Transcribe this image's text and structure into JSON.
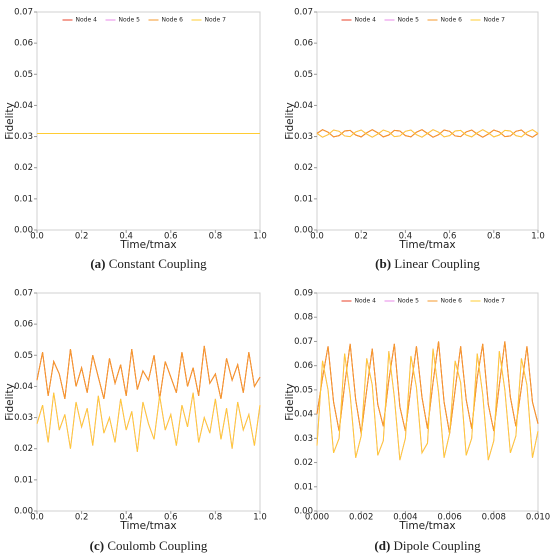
{
  "chart_data": [
    {
      "type": "line",
      "caption_label": "(a)",
      "caption": "Constant Coupling",
      "xlabel": "Time/tmax",
      "ylabel": "Fidelity",
      "legend": true,
      "legend_loc": "upper center",
      "xlim": [
        0,
        1
      ],
      "ylim": [
        0,
        0.07
      ],
      "xticks": [
        {
          "value": 0,
          "label": "0.0"
        },
        {
          "value": 0.2,
          "label": "0.2"
        },
        {
          "value": 0.4,
          "label": "0.4"
        },
        {
          "value": 0.6,
          "label": "0.6"
        },
        {
          "value": 0.8,
          "label": "0.8"
        },
        {
          "value": 1,
          "label": "1.0"
        }
      ],
      "yticks": [
        {
          "value": 0,
          "label": "0.00"
        },
        {
          "value": 0.01,
          "label": "0.01"
        },
        {
          "value": 0.02,
          "label": "0.02"
        },
        {
          "value": 0.03,
          "label": "0.03"
        },
        {
          "value": 0.04,
          "label": "0.04"
        },
        {
          "value": 0.05,
          "label": "0.05"
        },
        {
          "value": 0.06,
          "label": "0.06"
        },
        {
          "value": 0.07,
          "label": "0.07"
        }
      ],
      "x": [
        0,
        1
      ],
      "series": [
        {
          "name": "Node 4",
          "color": "#e8412a",
          "values": [
            0.031,
            0.031
          ]
        },
        {
          "name": "Node 5",
          "color": "#e98be9",
          "values": [
            0.031,
            0.031
          ]
        },
        {
          "name": "Node 6",
          "color": "#f59a2c",
          "values": [
            0.031,
            0.031
          ]
        },
        {
          "name": "Node 7",
          "color": "#ffcc33",
          "values": [
            0.031,
            0.031
          ]
        }
      ]
    },
    {
      "type": "line",
      "caption_label": "(b)",
      "caption": "Linear Coupling",
      "xlabel": "Time/tmax",
      "ylabel": "Fidelity",
      "legend": true,
      "legend_loc": "upper center",
      "xlim": [
        0,
        1
      ],
      "ylim": [
        0,
        0.07
      ],
      "xticks": [
        {
          "value": 0,
          "label": "0.0"
        },
        {
          "value": 0.2,
          "label": "0.2"
        },
        {
          "value": 0.4,
          "label": "0.4"
        },
        {
          "value": 0.6,
          "label": "0.6"
        },
        {
          "value": 0.8,
          "label": "0.8"
        },
        {
          "value": 1,
          "label": "1.0"
        }
      ],
      "yticks": [
        {
          "value": 0,
          "label": "0.00"
        },
        {
          "value": 0.01,
          "label": "0.01"
        },
        {
          "value": 0.02,
          "label": "0.02"
        },
        {
          "value": 0.03,
          "label": "0.03"
        },
        {
          "value": 0.04,
          "label": "0.04"
        },
        {
          "value": 0.05,
          "label": "0.05"
        },
        {
          "value": 0.06,
          "label": "0.06"
        },
        {
          "value": 0.07,
          "label": "0.07"
        }
      ],
      "x": [
        0,
        0.025,
        0.05,
        0.075,
        0.1,
        0.125,
        0.15,
        0.175,
        0.2,
        0.225,
        0.25,
        0.275,
        0.3,
        0.325,
        0.35,
        0.375,
        0.4,
        0.425,
        0.45,
        0.475,
        0.5,
        0.525,
        0.55,
        0.575,
        0.6,
        0.625,
        0.65,
        0.675,
        0.7,
        0.725,
        0.75,
        0.775,
        0.8,
        0.825,
        0.85,
        0.875,
        0.9,
        0.925,
        0.95,
        0.975,
        1
      ],
      "series": [
        {
          "name": "Node 4",
          "color": "#e8412a",
          "values": [
            0.031,
            0.0322,
            0.0314,
            0.0299,
            0.0303,
            0.0318,
            0.032,
            0.0305,
            0.0299,
            0.0312,
            0.0322,
            0.0312,
            0.0299,
            0.0305,
            0.032,
            0.0318,
            0.0303,
            0.0299,
            0.0314,
            0.0322,
            0.031,
            0.0298,
            0.0306,
            0.0321,
            0.0317,
            0.0302,
            0.03,
            0.0315,
            0.0321,
            0.0308,
            0.0298,
            0.0308,
            0.0321,
            0.0315,
            0.03,
            0.0302,
            0.0317,
            0.0321,
            0.0306,
            0.0298,
            0.031
          ]
        },
        {
          "name": "Node 5",
          "color": "#e98be9",
          "values": [
            0.031,
            0.0298,
            0.0306,
            0.0321,
            0.0317,
            0.0302,
            0.03,
            0.0315,
            0.0321,
            0.0308,
            0.0298,
            0.0308,
            0.0321,
            0.0315,
            0.03,
            0.0302,
            0.0317,
            0.0321,
            0.0306,
            0.0298,
            0.031,
            0.0322,
            0.0314,
            0.0299,
            0.0303,
            0.0318,
            0.032,
            0.0305,
            0.0299,
            0.0312,
            0.0322,
            0.0312,
            0.0299,
            0.0305,
            0.032,
            0.0318,
            0.0303,
            0.0299,
            0.0314,
            0.0322,
            0.031
          ]
        },
        {
          "name": "Node 6",
          "color": "#f59a2c",
          "values": [
            0.031,
            0.0322,
            0.0314,
            0.0299,
            0.0303,
            0.0318,
            0.032,
            0.0305,
            0.0299,
            0.0312,
            0.0322,
            0.0312,
            0.0299,
            0.0305,
            0.032,
            0.0318,
            0.0303,
            0.0299,
            0.0314,
            0.0322,
            0.031,
            0.0298,
            0.0306,
            0.0321,
            0.0317,
            0.0302,
            0.03,
            0.0315,
            0.0321,
            0.0308,
            0.0298,
            0.0308,
            0.0321,
            0.0315,
            0.03,
            0.0302,
            0.0317,
            0.0321,
            0.0306,
            0.0298,
            0.031
          ]
        },
        {
          "name": "Node 7",
          "color": "#ffcc33",
          "values": [
            0.031,
            0.0298,
            0.0306,
            0.0321,
            0.0317,
            0.0302,
            0.03,
            0.0315,
            0.0321,
            0.0308,
            0.0298,
            0.0308,
            0.0321,
            0.0315,
            0.03,
            0.0302,
            0.0317,
            0.0321,
            0.0306,
            0.0298,
            0.031,
            0.0322,
            0.0314,
            0.0299,
            0.0303,
            0.0318,
            0.032,
            0.0305,
            0.0299,
            0.0312,
            0.0322,
            0.0312,
            0.0299,
            0.0305,
            0.032,
            0.0318,
            0.0303,
            0.0299,
            0.0314,
            0.0322,
            0.031
          ]
        }
      ]
    },
    {
      "type": "line",
      "caption_label": "(c)",
      "caption": "Coulomb Coupling",
      "xlabel": "Time/tmax",
      "ylabel": "Fidelity",
      "legend": false,
      "xlim": [
        0,
        1
      ],
      "ylim": [
        0,
        0.07
      ],
      "xticks": [
        {
          "value": 0,
          "label": "0.0"
        },
        {
          "value": 0.2,
          "label": "0.2"
        },
        {
          "value": 0.4,
          "label": "0.4"
        },
        {
          "value": 0.6,
          "label": "0.6"
        },
        {
          "value": 0.8,
          "label": "0.8"
        },
        {
          "value": 1,
          "label": "1.0"
        }
      ],
      "yticks": [
        {
          "value": 0,
          "label": "0.00"
        },
        {
          "value": 0.01,
          "label": "0.01"
        },
        {
          "value": 0.02,
          "label": "0.02"
        },
        {
          "value": 0.03,
          "label": "0.03"
        },
        {
          "value": 0.04,
          "label": "0.04"
        },
        {
          "value": 0.05,
          "label": "0.05"
        },
        {
          "value": 0.06,
          "label": "0.06"
        },
        {
          "value": 0.07,
          "label": "0.07"
        }
      ],
      "x": [
        0,
        0.025,
        0.05,
        0.075,
        0.1,
        0.125,
        0.15,
        0.175,
        0.2,
        0.225,
        0.25,
        0.275,
        0.3,
        0.325,
        0.35,
        0.375,
        0.4,
        0.425,
        0.45,
        0.475,
        0.5,
        0.525,
        0.55,
        0.575,
        0.6,
        0.625,
        0.65,
        0.675,
        0.7,
        0.725,
        0.75,
        0.775,
        0.8,
        0.825,
        0.85,
        0.875,
        0.9,
        0.925,
        0.95,
        0.975,
        1
      ],
      "series": [
        {
          "name": "Node 4",
          "color": "#e8412a",
          "values": [
            0.042,
            0.051,
            0.037,
            0.048,
            0.044,
            0.036,
            0.052,
            0.04,
            0.046,
            0.038,
            0.05,
            0.043,
            0.036,
            0.049,
            0.041,
            0.047,
            0.037,
            0.052,
            0.039,
            0.045,
            0.042,
            0.05,
            0.036,
            0.048,
            0.043,
            0.038,
            0.051,
            0.04,
            0.046,
            0.037,
            0.053,
            0.041,
            0.044,
            0.036,
            0.049,
            0.042,
            0.047,
            0.038,
            0.051,
            0.04,
            0.043
          ]
        },
        {
          "name": "Node 5",
          "color": "#e98be9",
          "values": [
            0.028,
            0.034,
            0.022,
            0.038,
            0.026,
            0.031,
            0.02,
            0.035,
            0.027,
            0.033,
            0.021,
            0.037,
            0.025,
            0.03,
            0.022,
            0.036,
            0.026,
            0.032,
            0.019,
            0.035,
            0.028,
            0.023,
            0.037,
            0.026,
            0.031,
            0.021,
            0.034,
            0.027,
            0.038,
            0.022,
            0.03,
            0.025,
            0.036,
            0.023,
            0.033,
            0.02,
            0.035,
            0.026,
            0.031,
            0.021,
            0.034
          ]
        },
        {
          "name": "Node 6",
          "color": "#f59a2c",
          "values": [
            0.042,
            0.051,
            0.037,
            0.048,
            0.044,
            0.036,
            0.052,
            0.04,
            0.046,
            0.038,
            0.05,
            0.043,
            0.036,
            0.049,
            0.041,
            0.047,
            0.037,
            0.052,
            0.039,
            0.045,
            0.042,
            0.05,
            0.036,
            0.048,
            0.043,
            0.038,
            0.051,
            0.04,
            0.046,
            0.037,
            0.053,
            0.041,
            0.044,
            0.036,
            0.049,
            0.042,
            0.047,
            0.038,
            0.051,
            0.04,
            0.043
          ]
        },
        {
          "name": "Node 7",
          "color": "#ffcc33",
          "values": [
            0.028,
            0.034,
            0.022,
            0.038,
            0.026,
            0.031,
            0.02,
            0.035,
            0.027,
            0.033,
            0.021,
            0.037,
            0.025,
            0.03,
            0.022,
            0.036,
            0.026,
            0.032,
            0.019,
            0.035,
            0.028,
            0.023,
            0.037,
            0.026,
            0.031,
            0.021,
            0.034,
            0.027,
            0.038,
            0.022,
            0.03,
            0.025,
            0.036,
            0.023,
            0.033,
            0.02,
            0.035,
            0.026,
            0.031,
            0.021,
            0.034
          ]
        }
      ]
    },
    {
      "type": "line",
      "caption_label": "(d)",
      "caption": "Dipole Coupling",
      "xlabel": "Time/tmax",
      "ylabel": "Fidelity",
      "legend": true,
      "legend_loc": "upper center",
      "xlim": [
        0,
        0.01
      ],
      "ylim": [
        0,
        0.09
      ],
      "xticks": [
        {
          "value": 0,
          "label": "0.000"
        },
        {
          "value": 0.002,
          "label": "0.002"
        },
        {
          "value": 0.004,
          "label": "0.004"
        },
        {
          "value": 0.006,
          "label": "0.006"
        },
        {
          "value": 0.008,
          "label": "0.008"
        },
        {
          "value": 0.01,
          "label": "0.010"
        }
      ],
      "yticks": [
        {
          "value": 0,
          "label": "0.00"
        },
        {
          "value": 0.01,
          "label": "0.01"
        },
        {
          "value": 0.02,
          "label": "0.02"
        },
        {
          "value": 0.03,
          "label": "0.03"
        },
        {
          "value": 0.04,
          "label": "0.04"
        },
        {
          "value": 0.05,
          "label": "0.05"
        },
        {
          "value": 0.06,
          "label": "0.06"
        },
        {
          "value": 0.07,
          "label": "0.07"
        },
        {
          "value": 0.08,
          "label": "0.08"
        },
        {
          "value": 0.09,
          "label": "0.09"
        }
      ],
      "x": [
        0,
        0.00025,
        0.0005,
        0.00075,
        0.001,
        0.00125,
        0.0015,
        0.00175,
        0.002,
        0.00225,
        0.0025,
        0.00275,
        0.003,
        0.00325,
        0.0035,
        0.00375,
        0.004,
        0.00425,
        0.0045,
        0.00475,
        0.005,
        0.00525,
        0.0055,
        0.00575,
        0.006,
        0.00625,
        0.0065,
        0.00675,
        0.007,
        0.00725,
        0.0075,
        0.00775,
        0.008,
        0.00825,
        0.0085,
        0.00875,
        0.009,
        0.00925,
        0.0095,
        0.00975,
        0.01
      ],
      "series": [
        {
          "name": "Node 4",
          "color": "#e8412a",
          "values": [
            0.04,
            0.055,
            0.068,
            0.045,
            0.033,
            0.052,
            0.069,
            0.046,
            0.032,
            0.05,
            0.067,
            0.044,
            0.035,
            0.054,
            0.069,
            0.043,
            0.033,
            0.051,
            0.068,
            0.047,
            0.034,
            0.053,
            0.07,
            0.045,
            0.032,
            0.05,
            0.068,
            0.046,
            0.034,
            0.055,
            0.069,
            0.044,
            0.033,
            0.052,
            0.07,
            0.047,
            0.035,
            0.051,
            0.068,
            0.045,
            0.036
          ]
        },
        {
          "name": "Node 5",
          "color": "#e98be9",
          "values": [
            0.027,
            0.062,
            0.05,
            0.024,
            0.03,
            0.065,
            0.048,
            0.022,
            0.031,
            0.063,
            0.052,
            0.023,
            0.029,
            0.066,
            0.047,
            0.021,
            0.03,
            0.064,
            0.051,
            0.024,
            0.028,
            0.067,
            0.049,
            0.022,
            0.032,
            0.062,
            0.053,
            0.023,
            0.03,
            0.065,
            0.048,
            0.021,
            0.029,
            0.066,
            0.05,
            0.024,
            0.031,
            0.063,
            0.052,
            0.022,
            0.033
          ]
        },
        {
          "name": "Node 6",
          "color": "#f59a2c",
          "values": [
            0.04,
            0.055,
            0.068,
            0.045,
            0.033,
            0.052,
            0.069,
            0.046,
            0.032,
            0.05,
            0.067,
            0.044,
            0.035,
            0.054,
            0.069,
            0.043,
            0.033,
            0.051,
            0.068,
            0.047,
            0.034,
            0.053,
            0.07,
            0.045,
            0.032,
            0.05,
            0.068,
            0.046,
            0.034,
            0.055,
            0.069,
            0.044,
            0.033,
            0.052,
            0.07,
            0.047,
            0.035,
            0.051,
            0.068,
            0.045,
            0.036
          ]
        },
        {
          "name": "Node 7",
          "color": "#ffcc33",
          "values": [
            0.027,
            0.062,
            0.05,
            0.024,
            0.03,
            0.065,
            0.048,
            0.022,
            0.031,
            0.063,
            0.052,
            0.023,
            0.029,
            0.066,
            0.047,
            0.021,
            0.03,
            0.064,
            0.051,
            0.024,
            0.028,
            0.067,
            0.049,
            0.022,
            0.032,
            0.062,
            0.053,
            0.023,
            0.03,
            0.065,
            0.048,
            0.021,
            0.029,
            0.066,
            0.05,
            0.024,
            0.031,
            0.063,
            0.052,
            0.022,
            0.033
          ]
        }
      ]
    }
  ]
}
